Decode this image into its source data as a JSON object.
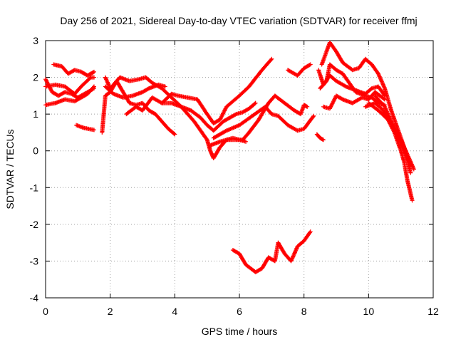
{
  "chart_data": {
    "type": "scatter",
    "title": "Day 256 of 2021, Sidereal Day-to-day VTEC variation (SDTVAR) for receiver ffmj",
    "xlabel": "GPS time / hours",
    "ylabel": "SDTVAR / TECUs",
    "xlim": [
      0,
      12
    ],
    "ylim": [
      -4,
      3
    ],
    "x_ticks": [
      "0",
      "2",
      "4",
      "6",
      "8",
      "10",
      "12"
    ],
    "y_ticks": [
      "-4",
      "-3",
      "-2",
      "-1",
      "0",
      "1",
      "2",
      "3"
    ],
    "grid": true,
    "marker": "+",
    "color": "#ff0000",
    "series": [
      {
        "name": "s1",
        "points": [
          [
            0.0,
            1.75
          ],
          [
            0.3,
            1.8
          ],
          [
            0.6,
            1.75
          ],
          [
            0.9,
            1.55
          ],
          [
            1.1,
            1.75
          ],
          [
            1.4,
            2.0
          ],
          [
            1.5,
            2.0
          ]
        ]
      },
      {
        "name": "s2",
        "points": [
          [
            0.0,
            1.25
          ],
          [
            0.3,
            1.3
          ],
          [
            0.6,
            1.4
          ],
          [
            0.9,
            1.35
          ],
          [
            1.1,
            1.45
          ],
          [
            1.3,
            1.55
          ],
          [
            1.5,
            1.75
          ]
        ]
      },
      {
        "name": "s3",
        "points": [
          [
            0.0,
            1.95
          ],
          [
            0.2,
            1.6
          ],
          [
            0.4,
            1.5
          ],
          [
            0.6,
            1.6
          ],
          [
            0.8,
            1.55
          ],
          [
            1.0,
            1.45
          ],
          [
            1.2,
            1.55
          ],
          [
            1.5,
            1.7
          ]
        ]
      },
      {
        "name": "s4",
        "points": [
          [
            0.25,
            2.35
          ],
          [
            0.5,
            2.3
          ],
          [
            0.7,
            2.1
          ],
          [
            0.9,
            2.2
          ],
          [
            1.1,
            2.15
          ],
          [
            1.3,
            2.05
          ],
          [
            1.5,
            2.15
          ]
        ]
      },
      {
        "name": "s5",
        "points": [
          [
            0.95,
            0.7
          ],
          [
            1.2,
            0.62
          ],
          [
            1.5,
            0.57
          ]
        ]
      },
      {
        "name": "s6",
        "points": [
          [
            1.75,
            0.5
          ],
          [
            1.85,
            1.5
          ],
          [
            2.0,
            1.6
          ],
          [
            2.2,
            1.9
          ],
          [
            2.4,
            1.6
          ],
          [
            2.6,
            1.3
          ],
          [
            2.8,
            1.25
          ],
          [
            3.0,
            1.3
          ],
          [
            3.2,
            1.1
          ],
          [
            3.4,
            1.0
          ],
          [
            3.6,
            0.8
          ],
          [
            3.8,
            0.6
          ],
          [
            4.0,
            0.45
          ]
        ]
      },
      {
        "name": "s7",
        "points": [
          [
            1.85,
            1.75
          ],
          [
            2.1,
            1.55
          ],
          [
            2.4,
            1.45
          ],
          [
            2.7,
            1.5
          ],
          [
            3.0,
            1.6
          ],
          [
            3.2,
            1.7
          ],
          [
            3.5,
            1.8
          ],
          [
            3.7,
            1.75
          ]
        ]
      },
      {
        "name": "s8",
        "points": [
          [
            1.85,
            2.0
          ],
          [
            2.0,
            1.7
          ],
          [
            2.3,
            2.0
          ],
          [
            2.6,
            1.9
          ],
          [
            2.9,
            1.95
          ],
          [
            3.1,
            2.0
          ],
          [
            3.3,
            1.85
          ],
          [
            3.6,
            1.7
          ],
          [
            3.9,
            1.45
          ],
          [
            4.2,
            1.2
          ],
          [
            4.5,
            1.1
          ],
          [
            4.8,
            0.9
          ],
          [
            5.0,
            0.7
          ],
          [
            5.2,
            0.55
          ],
          [
            5.5,
            0.8
          ],
          [
            5.9,
            1.0
          ],
          [
            6.1,
            1.05
          ],
          [
            6.3,
            1.15
          ],
          [
            6.5,
            1.3
          ]
        ]
      },
      {
        "name": "s9",
        "points": [
          [
            2.5,
            1.0
          ],
          [
            2.8,
            1.2
          ],
          [
            3.0,
            1.1
          ],
          [
            3.3,
            1.45
          ],
          [
            3.6,
            1.3
          ],
          [
            3.9,
            1.55
          ],
          [
            4.1,
            1.5
          ],
          [
            4.4,
            1.45
          ],
          [
            4.7,
            1.4
          ],
          [
            5.0,
            1.0
          ],
          [
            5.2,
            0.75
          ],
          [
            5.4,
            0.85
          ],
          [
            5.6,
            1.2
          ],
          [
            6.0,
            1.5
          ],
          [
            6.3,
            1.75
          ],
          [
            6.7,
            2.2
          ],
          [
            7.0,
            2.5
          ]
        ]
      },
      {
        "name": "s10",
        "points": [
          [
            3.6,
            1.3
          ],
          [
            3.9,
            1.3
          ],
          [
            4.2,
            1.2
          ],
          [
            4.4,
            1.0
          ],
          [
            4.6,
            0.8
          ],
          [
            4.8,
            0.55
          ],
          [
            5.0,
            0.3
          ],
          [
            5.1,
            0.0
          ],
          [
            5.2,
            -0.2
          ],
          [
            5.4,
            0.1
          ],
          [
            5.6,
            0.3
          ],
          [
            5.9,
            0.3
          ],
          [
            6.1,
            0.3
          ],
          [
            6.3,
            0.5
          ],
          [
            6.6,
            0.85
          ],
          [
            6.9,
            1.3
          ],
          [
            7.1,
            1.5
          ],
          [
            7.4,
            1.3
          ],
          [
            7.7,
            1.1
          ],
          [
            7.9,
            1.0
          ],
          [
            8.0,
            1.25
          ],
          [
            8.1,
            1.2
          ]
        ]
      },
      {
        "name": "s11",
        "points": [
          [
            5.1,
            0.15
          ],
          [
            5.4,
            0.25
          ],
          [
            5.6,
            0.3
          ],
          [
            5.8,
            0.35
          ],
          [
            6.0,
            0.3
          ],
          [
            6.2,
            0.25
          ]
        ]
      },
      {
        "name": "s12",
        "points": [
          [
            5.8,
            -2.7
          ],
          [
            6.0,
            -2.8
          ],
          [
            6.2,
            -3.1
          ],
          [
            6.5,
            -3.3
          ],
          [
            6.7,
            -3.2
          ],
          [
            6.9,
            -2.9
          ],
          [
            7.1,
            -3.0
          ],
          [
            7.2,
            -2.5
          ],
          [
            7.4,
            -2.8
          ],
          [
            7.6,
            -3.0
          ],
          [
            7.8,
            -2.6
          ],
          [
            8.0,
            -2.45
          ],
          [
            8.2,
            -2.2
          ]
        ]
      },
      {
        "name": "s13",
        "points": [
          [
            5.2,
            0.35
          ],
          [
            5.6,
            0.55
          ],
          [
            6.0,
            0.7
          ],
          [
            6.4,
            0.95
          ],
          [
            6.8,
            1.2
          ],
          [
            7.0,
            1.0
          ],
          [
            7.2,
            0.95
          ],
          [
            7.5,
            0.7
          ],
          [
            7.8,
            0.55
          ],
          [
            8.0,
            0.6
          ],
          [
            8.3,
            0.95
          ]
        ]
      },
      {
        "name": "s14",
        "points": [
          [
            7.5,
            2.2
          ],
          [
            7.8,
            2.05
          ],
          [
            8.0,
            2.25
          ],
          [
            8.2,
            2.35
          ]
        ]
      },
      {
        "name": "s15",
        "points": [
          [
            8.4,
            0.45
          ],
          [
            8.5,
            0.35
          ],
          [
            8.6,
            0.3
          ]
        ]
      },
      {
        "name": "s16",
        "points": [
          [
            8.45,
            2.2
          ],
          [
            8.6,
            1.8
          ],
          [
            8.8,
            2.05
          ],
          [
            9.0,
            1.9
          ],
          [
            9.3,
            1.75
          ],
          [
            9.6,
            1.65
          ],
          [
            9.9,
            1.55
          ],
          [
            10.1,
            1.7
          ],
          [
            10.3,
            1.75
          ],
          [
            10.5,
            1.5
          ]
        ]
      },
      {
        "name": "s17",
        "points": [
          [
            8.5,
            1.7
          ],
          [
            8.7,
            1.9
          ],
          [
            8.8,
            2.35
          ],
          [
            9.0,
            2.2
          ],
          [
            9.2,
            2.1
          ],
          [
            9.4,
            1.85
          ],
          [
            9.6,
            1.6
          ],
          [
            9.9,
            1.5
          ],
          [
            10.1,
            1.45
          ],
          [
            10.3,
            1.3
          ],
          [
            10.5,
            1.25
          ]
        ]
      },
      {
        "name": "s18",
        "points": [
          [
            8.6,
            1.2
          ],
          [
            8.8,
            1.15
          ],
          [
            9.0,
            1.5
          ],
          [
            9.2,
            1.4
          ],
          [
            9.5,
            1.3
          ],
          [
            9.8,
            1.45
          ],
          [
            10.0,
            1.4
          ],
          [
            10.2,
            1.6
          ],
          [
            10.5,
            1.4
          ]
        ]
      },
      {
        "name": "s19",
        "points": [
          [
            8.55,
            2.35
          ],
          [
            8.8,
            2.95
          ],
          [
            9.0,
            2.7
          ],
          [
            9.2,
            2.4
          ],
          [
            9.5,
            2.2
          ],
          [
            9.7,
            2.25
          ],
          [
            9.9,
            2.5
          ],
          [
            10.1,
            2.35
          ],
          [
            10.3,
            2.1
          ],
          [
            10.5,
            1.7
          ],
          [
            10.7,
            1.1
          ],
          [
            10.9,
            0.6
          ],
          [
            11.1,
            0.1
          ],
          [
            11.3,
            -0.6
          ]
        ]
      },
      {
        "name": "s20",
        "points": [
          [
            10.0,
            1.3
          ],
          [
            10.3,
            1.1
          ],
          [
            10.6,
            0.85
          ],
          [
            10.8,
            0.5
          ],
          [
            11.0,
            0.0
          ],
          [
            11.1,
            -0.3
          ],
          [
            11.2,
            -0.8
          ],
          [
            11.35,
            -1.35
          ]
        ]
      },
      {
        "name": "s21",
        "points": [
          [
            10.2,
            1.5
          ],
          [
            10.5,
            1.2
          ],
          [
            10.7,
            0.8
          ],
          [
            10.9,
            0.4
          ],
          [
            11.1,
            0.0
          ],
          [
            11.3,
            -0.4
          ]
        ]
      },
      {
        "name": "s22",
        "points": [
          [
            9.9,
            1.2
          ],
          [
            10.2,
            1.3
          ],
          [
            10.4,
            1.15
          ],
          [
            10.6,
            0.9
          ],
          [
            10.8,
            0.6
          ],
          [
            11.0,
            0.3
          ],
          [
            11.2,
            -0.1
          ],
          [
            11.4,
            -0.5
          ]
        ]
      }
    ]
  }
}
